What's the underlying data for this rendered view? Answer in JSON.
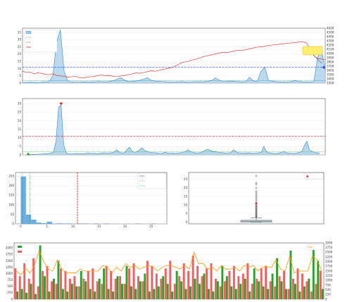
{
  "page": {
    "title": ""
  },
  "colors": {
    "ratio_line": "#3a86c8",
    "ratio_fill": "#9ecae9",
    "index_line": "#e02020",
    "mean_line": "#1f77b4",
    "warning_line": "#e02020",
    "current_marker": "#ffd400",
    "hist_bar": "#6aaee0",
    "rise_bar": "#2ca02c",
    "fall_bar": "#f06060",
    "total_line": "#ff9900"
  },
  "chart_data": [
    {
      "id": "ratio_vs_index",
      "type": "line",
      "title": "",
      "ylabel_left": "",
      "ylabel_right": "",
      "ylim_left": [
        0,
        38
      ],
      "ylim_right": [
        3300,
        4600
      ],
      "yticks_left": [
        "0",
        "5",
        "10",
        "15",
        "20",
        "25",
        "30",
        "35"
      ],
      "yticks_right": [
        "3300",
        "3400",
        "3500",
        "3600",
        "3700",
        "3800",
        "3900",
        "4000",
        "4100",
        "4200",
        "4300",
        "4400",
        "4500",
        "4600"
      ],
      "legend": [
        "",
        "",
        "",
        ""
      ],
      "legend_position": "top-left",
      "mean_line": 1.72,
      "warning_line": 10.87,
      "series": [
        {
          "name": "",
          "axis": "left",
          "values": [
            0.3,
            0.5,
            0.6,
            0.5,
            0.4,
            0.6,
            0.8,
            1.0,
            5.0,
            28.0,
            37.0,
            8.0,
            1.2,
            0.8,
            0.6,
            0.7,
            0.9,
            0.8,
            0.7,
            0.9,
            1.1,
            1.0,
            0.8,
            1.2,
            1.6,
            2.8,
            3.6,
            2.0,
            1.0,
            1.2,
            1.5,
            2.0,
            2.8,
            3.6,
            2.0,
            1.4,
            1.2,
            1.1,
            0.8,
            0.6,
            0.7,
            0.8,
            1.0,
            0.8,
            0.6,
            0.8,
            1.0,
            0.9,
            1.0,
            1.2,
            1.8,
            3.6,
            2.0,
            1.1,
            1.2,
            1.5,
            1.2,
            1.0,
            0.9,
            1.0,
            4.0,
            1.5,
            1.0,
            8.0,
            11.0,
            2.0,
            1.2,
            1.0,
            0.8,
            0.7,
            0.8,
            1.0,
            1.8,
            1.2,
            0.9,
            0.8,
            0.8,
            1.0,
            18.0,
            23.0,
            9.0
          ]
        },
        {
          "name": "",
          "axis": "right",
          "values": [
            3580,
            3550,
            3560,
            3520,
            3540,
            3530,
            3510,
            3500,
            3520,
            3480,
            3470,
            3460,
            3440,
            3450,
            3460,
            3430,
            3420,
            3440,
            3450,
            3460,
            3480,
            3490,
            3470,
            3480,
            3460,
            3450,
            3470,
            3480,
            3500,
            3520,
            3540,
            3530,
            3550,
            3570,
            3590,
            3580,
            3600,
            3620,
            3640,
            3660,
            3690,
            3730,
            3780,
            3800,
            3820,
            3850,
            3870,
            3900,
            3930,
            3950,
            3970,
            3990,
            4010,
            4030,
            4020,
            4040,
            4060,
            4080,
            4070,
            4090,
            4110,
            4130,
            4150,
            4160,
            4170,
            4190,
            4200,
            4210,
            4220,
            4230,
            4240,
            4250,
            4260,
            4270,
            4280,
            4250,
            4120,
            3950,
            3880,
            3870,
            3850
          ]
        }
      ],
      "annotation": {
        "text": ""
      }
    },
    {
      "id": "ratio_history",
      "type": "area",
      "title": "",
      "ylabel": "",
      "ylim": [
        0,
        33
      ],
      "yticks": [
        "0",
        "5",
        "10",
        "15",
        "20",
        "25",
        "30"
      ],
      "max_label": "",
      "min_label": "",
      "mean_line": 1.72,
      "warning_line": 10.87,
      "series": [
        {
          "name": "",
          "values": [
            0.25,
            0.3,
            0.3,
            0.35,
            0.4,
            0.5,
            0.6,
            0.7,
            0.8,
            1.0,
            1.5,
            8.0,
            28.0,
            29.0,
            6.0,
            1.0,
            0.6,
            0.5,
            0.6,
            0.8,
            0.7,
            0.6,
            0.7,
            0.9,
            1.0,
            0.8,
            0.9,
            0.7,
            0.8,
            1.0,
            1.2,
            0.9,
            1.0,
            1.3,
            1.8,
            3.0,
            1.5,
            1.0,
            1.2,
            3.0,
            4.5,
            2.0,
            1.5,
            2.0,
            3.0,
            4.0,
            2.5,
            2.0,
            1.6,
            1.4,
            1.2,
            1.0,
            0.8,
            1.0,
            1.5,
            1.1,
            0.9,
            1.0,
            0.8,
            1.0,
            1.2,
            1.5,
            2.0,
            3.0,
            2.0,
            1.6,
            1.0,
            1.1,
            1.3,
            2.0,
            2.8,
            3.2,
            2.5,
            2.0,
            2.0,
            1.6,
            1.4,
            1.2,
            1.0,
            0.9,
            1.5,
            3.0,
            2.0,
            1.2,
            1.0,
            1.0,
            1.1,
            1.2,
            1.0,
            0.9,
            1.0,
            1.2,
            1.5,
            5.0,
            2.0,
            1.2,
            1.0,
            0.8,
            0.8,
            1.0,
            1.6,
            2.0,
            1.2,
            1.0,
            0.9,
            0.8,
            1.0,
            1.5,
            2.0,
            5.5,
            8.0,
            3.0,
            2.0,
            1.5,
            1.2,
            1.0
          ]
        }
      ]
    },
    {
      "id": "ratio_distribution",
      "type": "bar",
      "title": "",
      "xlabel": "",
      "ylabel": "",
      "xlim": [
        -1,
        28
      ],
      "ylim": [
        0,
        270
      ],
      "xticks": [
        "0",
        "5",
        "10",
        "15",
        "20",
        "25"
      ],
      "yticks": [
        "0",
        "50",
        "100",
        "150",
        "200",
        "250"
      ],
      "bins": [
        {
          "x0": 0,
          "x1": 1,
          "count": 248
        },
        {
          "x0": 1,
          "x1": 2,
          "count": 48
        },
        {
          "x0": 2,
          "x1": 3,
          "count": 22
        },
        {
          "x0": 3,
          "x1": 4,
          "count": 6
        },
        {
          "x0": 4,
          "x1": 5,
          "count": 3
        },
        {
          "x0": 5,
          "x1": 6,
          "count": 11
        },
        {
          "x0": 6,
          "x1": 7,
          "count": 1
        },
        {
          "x0": 7,
          "x1": 8,
          "count": 2
        },
        {
          "x0": 8,
          "x1": 9,
          "count": 1
        },
        {
          "x0": 9,
          "x1": 10,
          "count": 1
        },
        {
          "x0": 11,
          "x1": 12,
          "count": 1
        },
        {
          "x0": 12,
          "x1": 13,
          "count": 1
        },
        {
          "x0": 14,
          "x1": 15,
          "count": 1
        },
        {
          "x0": 16,
          "x1": 17,
          "count": 1
        },
        {
          "x0": 22,
          "x1": 23,
          "count": 1
        },
        {
          "x0": 25,
          "x1": 26,
          "count": 1
        }
      ],
      "current": 10.87,
      "mean": 1.72,
      "median": 0.34,
      "legend": [
        "",
        "",
        ""
      ],
      "legend_position": "top-right"
    },
    {
      "id": "ratio_boxplot",
      "type": "scatter",
      "title": "",
      "xlabel": "",
      "ylabel": "",
      "ylim": [
        -1,
        29
      ],
      "yticks": [
        "0",
        "5",
        "10",
        "15",
        "20",
        "25"
      ],
      "box": {
        "q1": 0.1,
        "median": 0.34,
        "q3": 1.1,
        "whisker_low": 0.0,
        "whisker_high": 2.5
      },
      "outliers": [
        3,
        3.3,
        3.6,
        4,
        4.5,
        5,
        5.5,
        6,
        6.5,
        7,
        7.5,
        8,
        8.5,
        9,
        9.5,
        10,
        11,
        12,
        13,
        14,
        15,
        16,
        17,
        18,
        20,
        22,
        23,
        27
      ],
      "current": 10.87,
      "legend": [
        ""
      ],
      "legend_position": "top-right"
    },
    {
      "id": "rise_fall_volume",
      "type": "bar",
      "title": "",
      "ylabel_left": "",
      "ylabel_right": "",
      "ylim_left": [
        0,
        2200
      ],
      "ylim_right": [
        0,
        3000
      ],
      "yticks_left": [
        "0",
        "250",
        "500",
        "750",
        "1000",
        "1250",
        "1500",
        "1750",
        "2000"
      ],
      "yticks_right": [
        "0",
        "250",
        "500",
        "750",
        "1000",
        "1250",
        "1500",
        "1750",
        "2000",
        "2250",
        "2500",
        "2750",
        "3000"
      ],
      "legend": [
        "",
        ""
      ],
      "legend_position": "top-left",
      "legend_right": [
        ""
      ],
      "rise": [
        300,
        400,
        250,
        600,
        200,
        2100,
        900,
        300,
        800,
        1500,
        400,
        300,
        600,
        500,
        1100,
        700,
        400,
        300,
        800,
        1200,
        400,
        300,
        900,
        600,
        1300,
        500,
        400,
        700,
        1000,
        300,
        400,
        500,
        900,
        600,
        300,
        1100,
        700,
        400,
        500,
        800,
        600,
        1000,
        400,
        300,
        700,
        1300,
        900,
        500,
        400,
        600,
        800,
        300,
        1200,
        700,
        500,
        400,
        1000,
        1600,
        700,
        400,
        1900,
        600,
        300,
        500,
        800,
        2000,
        1500,
        400
      ],
      "fall": [
        1200,
        900,
        1400,
        800,
        1600,
        500,
        1100,
        1300,
        700,
        600,
        1200,
        1100,
        800,
        900,
        500,
        800,
        1100,
        1200,
        700,
        600,
        1300,
        1100,
        800,
        900,
        600,
        1200,
        1400,
        900,
        700,
        1500,
        1300,
        1000,
        800,
        1200,
        1500,
        600,
        900,
        1400,
        1100,
        1700,
        1300,
        900,
        1200,
        1400,
        800,
        500,
        700,
        1100,
        1300,
        900,
        1000,
        1400,
        600,
        800,
        1200,
        1300,
        700,
        500,
        900,
        1100,
        400,
        800,
        1200,
        1000,
        700,
        300,
        600,
        1100
      ],
      "total_line": [
        1500,
        1300,
        1650,
        1400,
        1800,
        2600,
        2000,
        1600,
        1500,
        2100,
        1600,
        1400,
        1400,
        1400,
        1600,
        1500,
        1500,
        1500,
        1500,
        1800,
        1700,
        1400,
        1700,
        1500,
        1900,
        1700,
        1800,
        1600,
        1700,
        1800,
        1700,
        1500,
        1700,
        1800,
        1800,
        1700,
        1600,
        1800,
        1600,
        2500,
        1900,
        1900,
        1600,
        1700,
        1500,
        1800,
        1600,
        1600,
        1700,
        1500,
        1800,
        1700,
        1800,
        1500,
        1700,
        1700,
        1700,
        2100,
        1600,
        1500,
        2300,
        1400,
        1500,
        1500,
        1500,
        2300,
        2100,
        1500
      ]
    }
  ]
}
